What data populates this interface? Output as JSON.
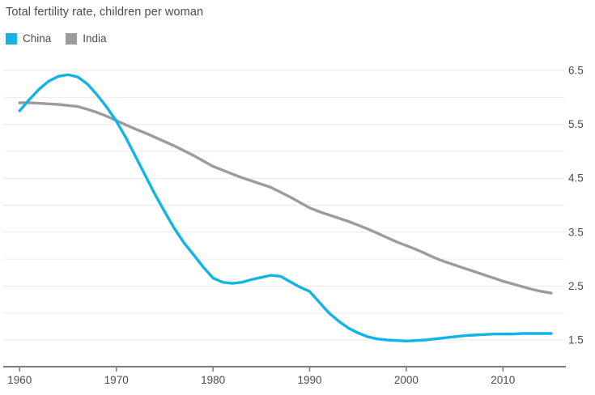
{
  "chart": {
    "title": "Total fertility rate, children per woman",
    "legend": [
      {
        "label": "China"
      },
      {
        "label": "India"
      }
    ]
  },
  "chart_data": {
    "type": "line",
    "title": "Total fertility rate, children per woman",
    "xlabel": "",
    "ylabel": "children per woman",
    "x_ticks": [
      1960,
      1970,
      1980,
      1990,
      2000,
      2010
    ],
    "y_tick_labels": [
      "6.5",
      "5.5",
      "4.5",
      "3.5",
      "2.5",
      "1.5"
    ],
    "y_tick_values": [
      6.5,
      5.5,
      4.5,
      3.5,
      2.5,
      1.5
    ],
    "y_gridlines": [
      1.5,
      2.0,
      2.5,
      3.0,
      3.5,
      4.0,
      4.5,
      5.0,
      5.5,
      6.0,
      6.5
    ],
    "xlim": [
      1958.3,
      2016.5
    ],
    "ylim": [
      1.5,
      6.5
    ],
    "grid": true,
    "legend_position": "top-left",
    "colors": {
      "china": "#12b4e6",
      "india": "#9c9c9c",
      "gridline": "#eaeaea",
      "axis": "#7b7b7b",
      "tick_label": "#4c4c4c",
      "title_text": "#4c4c4c"
    },
    "series": [
      {
        "name": "India",
        "color": "#9c9c9c",
        "points": [
          [
            1960,
            5.9
          ],
          [
            1961,
            5.9
          ],
          [
            1962,
            5.89
          ],
          [
            1963,
            5.88
          ],
          [
            1964,
            5.87
          ],
          [
            1965,
            5.85
          ],
          [
            1966,
            5.83
          ],
          [
            1967,
            5.78
          ],
          [
            1968,
            5.72
          ],
          [
            1969,
            5.65
          ],
          [
            1970,
            5.57
          ],
          [
            1971,
            5.49
          ],
          [
            1972,
            5.41
          ],
          [
            1973,
            5.34
          ],
          [
            1974,
            5.26
          ],
          [
            1975,
            5.18
          ],
          [
            1976,
            5.1
          ],
          [
            1977,
            5.01
          ],
          [
            1978,
            4.92
          ],
          [
            1979,
            4.82
          ],
          [
            1980,
            4.72
          ],
          [
            1981,
            4.65
          ],
          [
            1982,
            4.58
          ],
          [
            1983,
            4.51
          ],
          [
            1984,
            4.45
          ],
          [
            1985,
            4.39
          ],
          [
            1986,
            4.33
          ],
          [
            1987,
            4.24
          ],
          [
            1988,
            4.15
          ],
          [
            1989,
            4.05
          ],
          [
            1990,
            3.95
          ],
          [
            1991,
            3.88
          ],
          [
            1992,
            3.82
          ],
          [
            1993,
            3.76
          ],
          [
            1994,
            3.7
          ],
          [
            1995,
            3.63
          ],
          [
            1996,
            3.56
          ],
          [
            1997,
            3.48
          ],
          [
            1998,
            3.4
          ],
          [
            1999,
            3.32
          ],
          [
            2000,
            3.25
          ],
          [
            2001,
            3.18
          ],
          [
            2002,
            3.1
          ],
          [
            2003,
            3.02
          ],
          [
            2004,
            2.95
          ],
          [
            2005,
            2.89
          ],
          [
            2006,
            2.83
          ],
          [
            2007,
            2.77
          ],
          [
            2008,
            2.71
          ],
          [
            2009,
            2.65
          ],
          [
            2010,
            2.59
          ],
          [
            2011,
            2.54
          ],
          [
            2012,
            2.49
          ],
          [
            2013,
            2.44
          ],
          [
            2014,
            2.4
          ],
          [
            2015,
            2.37
          ]
        ]
      },
      {
        "name": "China",
        "color": "#12b4e6",
        "points": [
          [
            1960,
            5.75
          ],
          [
            1961,
            5.96
          ],
          [
            1962,
            6.15
          ],
          [
            1963,
            6.3
          ],
          [
            1964,
            6.39
          ],
          [
            1965,
            6.42
          ],
          [
            1966,
            6.38
          ],
          [
            1967,
            6.25
          ],
          [
            1968,
            6.05
          ],
          [
            1969,
            5.82
          ],
          [
            1970,
            5.56
          ],
          [
            1971,
            5.25
          ],
          [
            1972,
            4.9
          ],
          [
            1973,
            4.55
          ],
          [
            1974,
            4.2
          ],
          [
            1975,
            3.88
          ],
          [
            1976,
            3.57
          ],
          [
            1977,
            3.3
          ],
          [
            1978,
            3.08
          ],
          [
            1979,
            2.85
          ],
          [
            1980,
            2.65
          ],
          [
            1981,
            2.57
          ],
          [
            1982,
            2.55
          ],
          [
            1983,
            2.57
          ],
          [
            1984,
            2.62
          ],
          [
            1985,
            2.66
          ],
          [
            1986,
            2.7
          ],
          [
            1987,
            2.68
          ],
          [
            1988,
            2.58
          ],
          [
            1989,
            2.48
          ],
          [
            1990,
            2.4
          ],
          [
            1991,
            2.2
          ],
          [
            1992,
            2.0
          ],
          [
            1993,
            1.85
          ],
          [
            1994,
            1.72
          ],
          [
            1995,
            1.63
          ],
          [
            1996,
            1.56
          ],
          [
            1997,
            1.52
          ],
          [
            1998,
            1.5
          ],
          [
            1999,
            1.49
          ],
          [
            2000,
            1.48
          ],
          [
            2001,
            1.49
          ],
          [
            2002,
            1.5
          ],
          [
            2003,
            1.52
          ],
          [
            2004,
            1.54
          ],
          [
            2005,
            1.56
          ],
          [
            2006,
            1.58
          ],
          [
            2007,
            1.59
          ],
          [
            2008,
            1.6
          ],
          [
            2009,
            1.61
          ],
          [
            2010,
            1.61
          ],
          [
            2011,
            1.61
          ],
          [
            2012,
            1.62
          ],
          [
            2013,
            1.62
          ],
          [
            2014,
            1.62
          ],
          [
            2015,
            1.62
          ]
        ]
      }
    ]
  }
}
